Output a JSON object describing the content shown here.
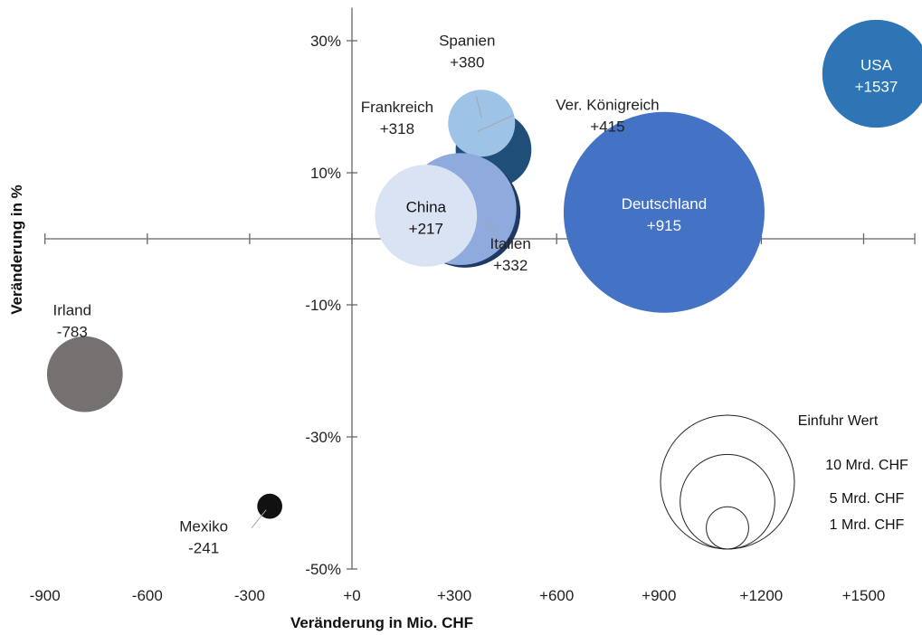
{
  "chart_data": {
    "type": "bubble",
    "xlabel": "Veränderung in Mio. CHF",
    "ylabel": "Veränderung in %",
    "xlim": [
      -900,
      1650
    ],
    "ylim": [
      -50,
      35
    ],
    "x_ticks": [
      {
        "value": -900,
        "label": "-900"
      },
      {
        "value": -600,
        "label": "-600"
      },
      {
        "value": -300,
        "label": "-300"
      },
      {
        "value": 0,
        "label": "+0"
      },
      {
        "value": 300,
        "label": "+300"
      },
      {
        "value": 600,
        "label": "+600"
      },
      {
        "value": 900,
        "label": "+900"
      },
      {
        "value": 1200,
        "label": "+1200"
      },
      {
        "value": 1500,
        "label": "+1500"
      }
    ],
    "y_ticks": [
      {
        "value": 30,
        "label": "30%"
      },
      {
        "value": 10,
        "label": "10%"
      },
      {
        "value": -10,
        "label": "-10%"
      },
      {
        "value": -30,
        "label": "-30%"
      },
      {
        "value": -50,
        "label": "-50%"
      }
    ],
    "points": [
      {
        "name": "Ver. Königreich",
        "value_label": "+415",
        "x": 415,
        "y": 13.5,
        "size": 3.2,
        "color": "#1f4e79",
        "text_color": "#222222"
      },
      {
        "name": "Spanien",
        "value_label": "+380",
        "x": 380,
        "y": 17.5,
        "size": 2.5,
        "color": "#9dc3e6",
        "text_color": "#222222"
      },
      {
        "name": "Italien",
        "value_label": "+332",
        "x": 332,
        "y": 4,
        "size": 6.8,
        "color": "#203864",
        "text_color": "#222222"
      },
      {
        "name": "Frankreich",
        "value_label": "+318",
        "x": 318,
        "y": 4.5,
        "size": 7.0,
        "color": "#8faadc",
        "text_color": "#222222"
      },
      {
        "name": "China",
        "value_label": "+217",
        "x": 217,
        "y": 3.5,
        "size": 5.8,
        "color": "#dae3f3",
        "text_color": "#111111"
      },
      {
        "name": "Deutschland",
        "value_label": "+915",
        "x": 915,
        "y": 4,
        "size": 22.5,
        "color": "#4472c4",
        "text_color": "#ffffff"
      },
      {
        "name": "USA",
        "value_label": "+1537",
        "x": 1537,
        "y": 25,
        "size": 6.5,
        "color": "#2e75b6",
        "text_color": "#ffffff"
      },
      {
        "name": "Irland",
        "value_label": "-783",
        "x": -783,
        "y": -20.5,
        "size": 3.2,
        "color": "#767171",
        "text_color": "#111111"
      },
      {
        "name": "Mexiko",
        "value_label": "-241",
        "x": -241,
        "y": -40.5,
        "size": 0.35,
        "color": "#111111",
        "text_color": "#111111"
      }
    ],
    "legend": {
      "title": "Einfuhr Wert",
      "entries": [
        {
          "label": "10 Mrd. CHF",
          "size": 10
        },
        {
          "label": "5 Mrd. CHF",
          "size": 5
        },
        {
          "label": "1 Mrd. CHF",
          "size": 1
        }
      ]
    }
  }
}
